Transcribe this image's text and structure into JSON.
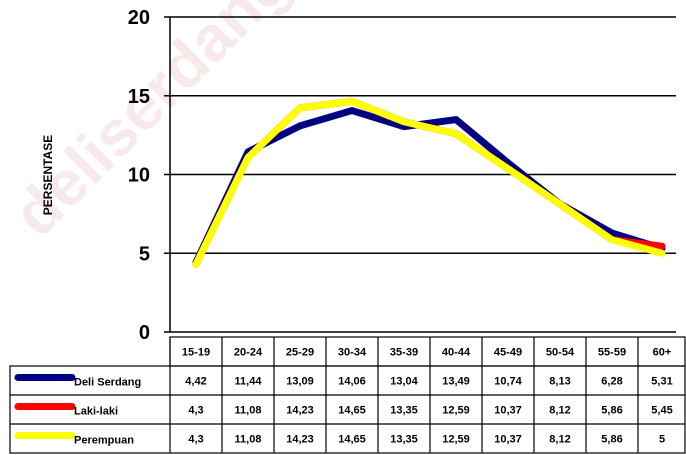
{
  "chart_data": {
    "type": "line",
    "ylabel": "PERSENTASE",
    "xlabel": "",
    "title": "",
    "ylim": [
      0,
      20
    ],
    "yticks": [
      0,
      5,
      10,
      15,
      20
    ],
    "grid": true,
    "legend": "table-below",
    "categories": [
      "15-19",
      "20-24",
      "25-29",
      "30-34",
      "35-39",
      "40-44",
      "45-49",
      "50-54",
      "55-59",
      "60+"
    ],
    "series": [
      {
        "name": "Deli Serdang",
        "color": "#000080",
        "values": [
          4.42,
          11.44,
          13.09,
          14.06,
          13.04,
          13.49,
          10.74,
          8.13,
          6.28,
          5.31
        ],
        "labels": [
          "4,42",
          "11,44",
          "13,09",
          "14,06",
          "13,04",
          "13,49",
          "10,74",
          "8,13",
          "6,28",
          "5,31"
        ]
      },
      {
        "name": "Laki-laki",
        "color": "#ff0000",
        "values": [
          4.3,
          11.08,
          14.23,
          14.65,
          13.35,
          12.59,
          10.37,
          8.12,
          5.86,
          5.45
        ],
        "labels": [
          "4,3",
          "11,08",
          "14,23",
          "14,65",
          "13,35",
          "12,59",
          "10,37",
          "8,12",
          "5,86",
          "5,45"
        ]
      },
      {
        "name": "Perempuan",
        "color": "#ffff00",
        "values": [
          4.3,
          11.08,
          14.23,
          14.65,
          13.35,
          12.59,
          10.37,
          8.12,
          5.86,
          5
        ],
        "labels": [
          "4,3",
          "11,08",
          "14,23",
          "14,65",
          "13,35",
          "12,59",
          "10,37",
          "8,12",
          "5,86",
          "5"
        ]
      }
    ]
  },
  "watermark": "deliserdangkab.bps"
}
